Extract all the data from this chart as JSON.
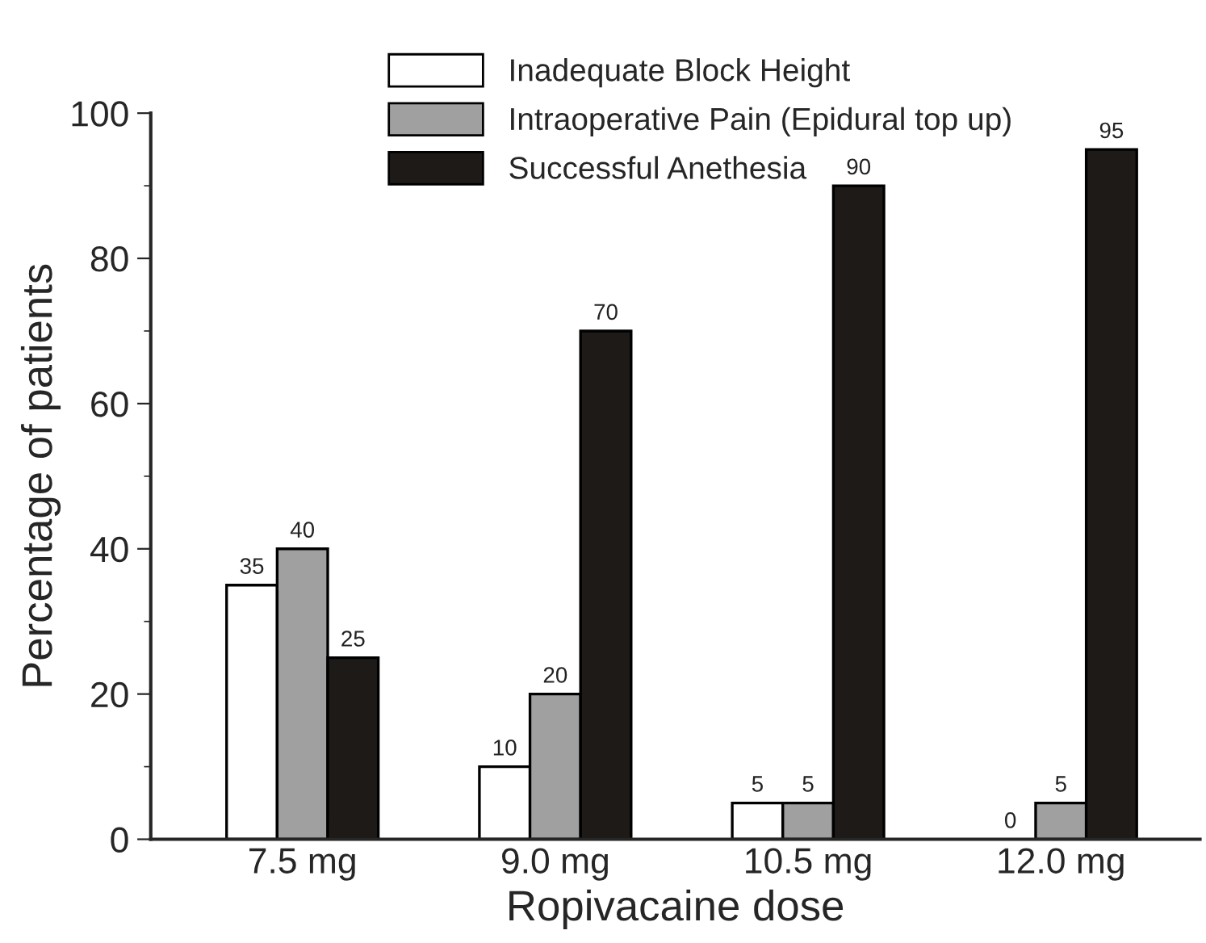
{
  "chart_data": {
    "type": "bar",
    "xlabel": "Ropivacaine dose",
    "ylabel": "Percentage of patients",
    "categories": [
      "7.5 mg",
      "9.0 mg",
      "10.5 mg",
      "12.0 mg"
    ],
    "series": [
      {
        "name": "Inadequate Block Height",
        "color": "#ffffff",
        "values": [
          35,
          10,
          5,
          0
        ]
      },
      {
        "name": "Intraoperative Pain (Epidural top up)",
        "color": "#a0a0a0",
        "values": [
          40,
          20,
          5,
          5
        ]
      },
      {
        "name": "Successful Anethesia",
        "color": "#1e1a18",
        "values": [
          25,
          70,
          90,
          95
        ]
      }
    ],
    "ylim": [
      0,
      100
    ],
    "yticks": [
      0,
      20,
      40,
      60,
      80,
      100
    ],
    "data_labels": true,
    "legend": "top left",
    "grid": false
  }
}
